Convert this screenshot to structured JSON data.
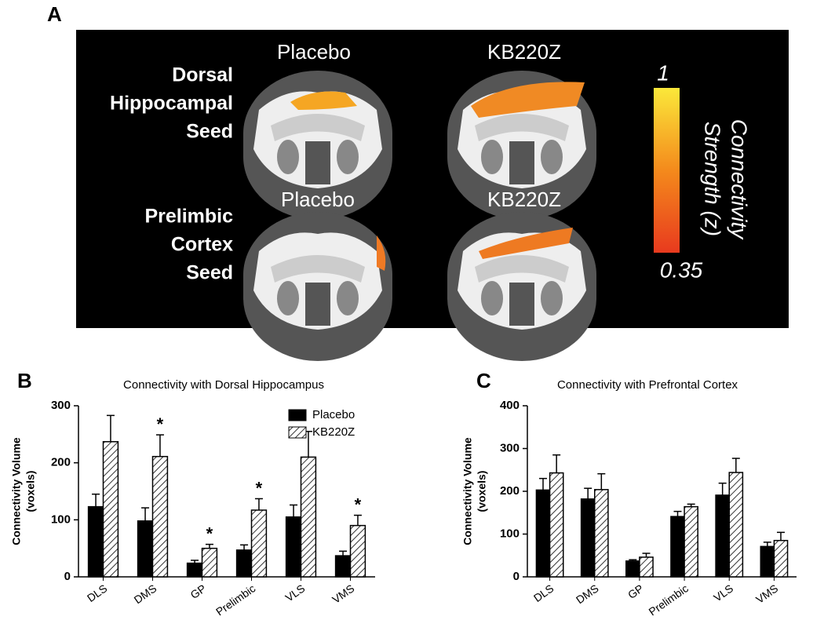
{
  "panel_a": {
    "panel_label": "A",
    "column_titles": [
      "Placebo",
      "KB220Z",
      "Placebo",
      "KB220Z"
    ],
    "row_labels": [
      [
        "Dorsal",
        "Hippocampal",
        "Seed"
      ],
      [
        "Prelimbic",
        "Cortex",
        "Seed"
      ]
    ],
    "colorbar": {
      "max": 1,
      "min": 0.35,
      "label": [
        "Connectivity",
        "Strength (z)"
      ]
    }
  },
  "chart_data": [
    {
      "type": "bar",
      "panel_label": "B",
      "title": "Connectivity with Dorsal Hippocampus",
      "ylabel": [
        "Connectivity Volume",
        "(voxels)"
      ],
      "categories": [
        "DLS",
        "DMS",
        "GP",
        "Prelimbic",
        "VLS",
        "VMS"
      ],
      "series": [
        {
          "name": "Placebo",
          "color": "#000000",
          "hatch": false,
          "values": [
            123,
            98,
            24,
            47,
            105,
            37
          ],
          "errors": [
            22,
            23,
            5,
            9,
            21,
            8
          ]
        },
        {
          "name": "KB220Z",
          "color": "#ffffff",
          "hatch": true,
          "values": [
            237,
            211,
            50,
            117,
            210,
            90
          ],
          "errors": [
            46,
            38,
            7,
            20,
            45,
            18
          ],
          "markers": [
            null,
            "*",
            "*",
            "*",
            null,
            "*"
          ]
        }
      ],
      "ylim": [
        0,
        300
      ],
      "yticks": [
        0,
        100,
        200,
        300
      ],
      "legend": "upper-right"
    },
    {
      "type": "bar",
      "panel_label": "C",
      "title": "Connectivity with Prefrontal Cortex",
      "ylabel": [
        "Connectivity Volume",
        "(voxels)"
      ],
      "categories": [
        "DLS",
        "DMS",
        "GP",
        "Prelimbic",
        "VLS",
        "VMS"
      ],
      "series": [
        {
          "name": "Placebo",
          "color": "#000000",
          "hatch": false,
          "values": [
            203,
            182,
            37,
            141,
            191,
            71
          ],
          "errors": [
            27,
            25,
            3,
            12,
            28,
            10
          ]
        },
        {
          "name": "KB220Z",
          "color": "#ffffff",
          "hatch": true,
          "values": [
            243,
            204,
            46,
            164,
            244,
            85
          ],
          "errors": [
            42,
            37,
            9,
            6,
            33,
            19
          ]
        }
      ],
      "ylim": [
        0,
        400
      ],
      "yticks": [
        0,
        100,
        200,
        300,
        400
      ]
    }
  ]
}
